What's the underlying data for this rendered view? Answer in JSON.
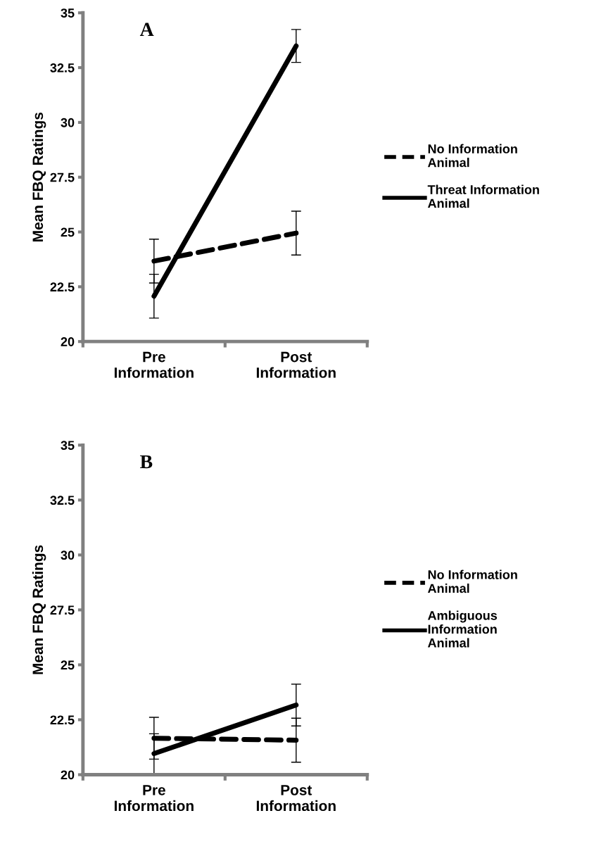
{
  "chart_data": [
    {
      "type": "line",
      "ylabel": "Mean FBQ Ratings",
      "categories": [
        "Pre\nInformation",
        "Post\nInformation"
      ],
      "ylim": [
        20,
        35
      ],
      "yticks": [
        20,
        22.5,
        25,
        27.5,
        30,
        32.5,
        35
      ],
      "grid": false,
      "legend": "right",
      "marker": "none",
      "annotations": [
        "A"
      ],
      "series": [
        {
          "name": "No Information\nAnimal",
          "color": "#000000",
          "line_style": "dashed",
          "values": [
            23.67,
            24.95
          ],
          "errors": [
            1.0,
            1.0
          ]
        },
        {
          "name": "Threat Information\nAnimal",
          "color": "#000000",
          "line_style": "solid",
          "values": [
            22.07,
            33.49
          ],
          "errors": [
            1.0,
            0.75
          ]
        }
      ]
    },
    {
      "type": "line",
      "ylabel": "Mean FBQ Ratings",
      "categories": [
        "Pre\nInformation",
        "Post\nInformation"
      ],
      "ylim": [
        20,
        35
      ],
      "yticks": [
        20,
        22.5,
        25,
        27.5,
        30,
        32.5,
        35
      ],
      "grid": false,
      "legend": "right",
      "marker": "none",
      "annotations": [
        "B"
      ],
      "series": [
        {
          "name": "No Information\nAnimal",
          "color": "#000000",
          "line_style": "dashed",
          "values": [
            21.66,
            21.57
          ],
          "errors": [
            0.95,
            1.0
          ]
        },
        {
          "name": "Ambiguous\nInformation\nAnimal",
          "color": "#000000",
          "line_style": "solid",
          "values": [
            20.96,
            23.17
          ],
          "errors": [
            0.9,
            0.95
          ]
        }
      ]
    }
  ]
}
